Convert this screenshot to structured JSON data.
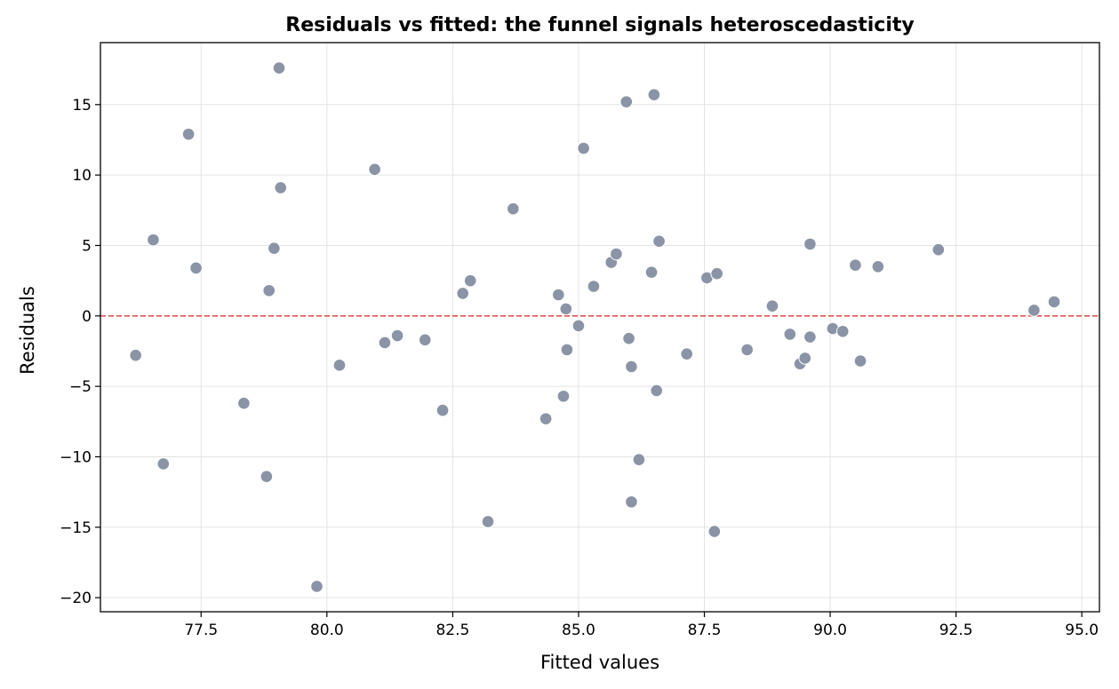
{
  "chart_data": {
    "type": "scatter",
    "title": "Residuals vs fitted: the funnel signals heteroscedasticity",
    "xlabel": "Fitted values",
    "ylabel": "Residuals",
    "xlim": [
      75.5,
      95.35
    ],
    "ylim": [
      -21.0,
      19.4
    ],
    "xticks": [
      77.5,
      80.0,
      82.5,
      85.0,
      87.5,
      90.0,
      92.5,
      95.0
    ],
    "xtick_labels": [
      "77.5",
      "80.0",
      "82.5",
      "85.0",
      "87.5",
      "90.0",
      "92.5",
      "95.0"
    ],
    "yticks": [
      -20,
      -15,
      -10,
      -5,
      0,
      5,
      10,
      15
    ],
    "ytick_labels": [
      "−20",
      "−15",
      "−10",
      "−5",
      "0",
      "5",
      "10",
      "15"
    ],
    "grid": true,
    "reference_line": {
      "y": 0,
      "style": "dashed",
      "color": "#e05555"
    },
    "point_color": "#8a94a6",
    "points": [
      [
        76.2,
        -2.8
      ],
      [
        76.55,
        5.4
      ],
      [
        76.75,
        -10.5
      ],
      [
        77.25,
        12.9
      ],
      [
        77.4,
        3.4
      ],
      [
        78.35,
        -6.2
      ],
      [
        78.8,
        -11.4
      ],
      [
        78.85,
        1.8
      ],
      [
        78.95,
        4.8
      ],
      [
        79.05,
        17.6
      ],
      [
        79.08,
        9.1
      ],
      [
        79.8,
        -19.2
      ],
      [
        80.25,
        -3.5
      ],
      [
        80.95,
        10.4
      ],
      [
        81.15,
        -1.9
      ],
      [
        81.4,
        -1.4
      ],
      [
        81.95,
        -1.7
      ],
      [
        82.3,
        -6.7
      ],
      [
        82.7,
        1.6
      ],
      [
        82.85,
        2.5
      ],
      [
        83.2,
        -14.6
      ],
      [
        83.7,
        7.6
      ],
      [
        84.35,
        -7.3
      ],
      [
        84.6,
        1.5
      ],
      [
        84.7,
        -5.7
      ],
      [
        84.75,
        0.5
      ],
      [
        84.77,
        -2.4
      ],
      [
        85.0,
        -0.7
      ],
      [
        85.1,
        11.9
      ],
      [
        85.3,
        2.1
      ],
      [
        85.65,
        3.8
      ],
      [
        85.75,
        4.4
      ],
      [
        85.95,
        15.2
      ],
      [
        86.0,
        -1.6
      ],
      [
        86.05,
        -3.6
      ],
      [
        86.05,
        -13.2
      ],
      [
        86.2,
        -10.2
      ],
      [
        86.45,
        3.1
      ],
      [
        86.5,
        15.7
      ],
      [
        86.55,
        -5.3
      ],
      [
        86.6,
        5.3
      ],
      [
        87.15,
        -2.7
      ],
      [
        87.55,
        2.7
      ],
      [
        87.7,
        -15.3
      ],
      [
        87.75,
        3.0
      ],
      [
        88.35,
        -2.4
      ],
      [
        88.85,
        0.7
      ],
      [
        89.2,
        -1.3
      ],
      [
        89.4,
        -3.4
      ],
      [
        89.5,
        -3.0
      ],
      [
        89.6,
        5.1
      ],
      [
        89.6,
        -1.5
      ],
      [
        90.05,
        -0.9
      ],
      [
        90.25,
        -1.1
      ],
      [
        90.5,
        3.6
      ],
      [
        90.6,
        -3.2
      ],
      [
        90.95,
        3.5
      ],
      [
        92.15,
        4.7
      ],
      [
        94.05,
        0.4
      ],
      [
        94.45,
        1.0
      ]
    ]
  }
}
